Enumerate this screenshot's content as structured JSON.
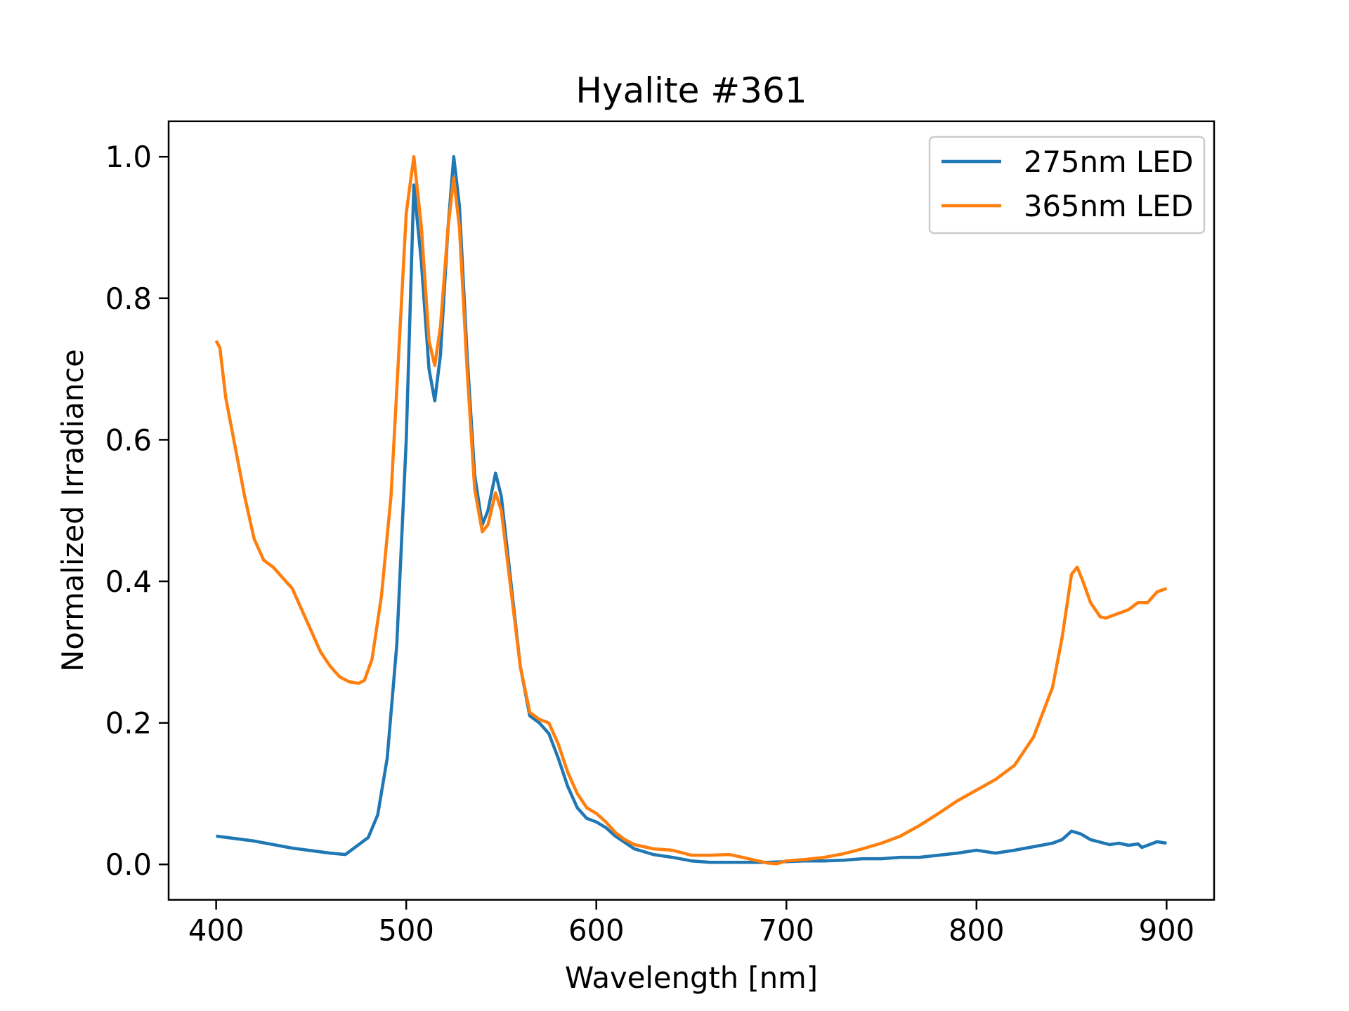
{
  "chart_data": {
    "type": "line",
    "title": "Hyalite #361",
    "xlabel": "Wavelength [nm]",
    "ylabel": "Normalized Irradiance",
    "xlim": [
      375,
      925
    ],
    "ylim": [
      -0.05,
      1.05
    ],
    "xticks": [
      400,
      500,
      600,
      700,
      800,
      900
    ],
    "xtick_labels": [
      "400",
      "500",
      "600",
      "700",
      "800",
      "900"
    ],
    "yticks": [
      0.0,
      0.2,
      0.4,
      0.6,
      0.8,
      1.0
    ],
    "ytick_labels": [
      "0.0",
      "0.2",
      "0.4",
      "0.6",
      "0.8",
      "1.0"
    ],
    "grid": false,
    "legend_position": "top-right",
    "series": [
      {
        "name": "275nm LED",
        "color": "#1f77b4",
        "x": [
          400,
          420,
          440,
          460,
          468,
          480,
          485,
          490,
          495,
          500,
          504,
          508,
          512,
          515,
          518,
          522,
          525,
          528,
          532,
          536,
          540,
          543,
          547,
          550,
          555,
          560,
          565,
          570,
          575,
          580,
          585,
          590,
          595,
          600,
          605,
          610,
          620,
          630,
          640,
          650,
          660,
          670,
          680,
          690,
          700,
          710,
          720,
          730,
          740,
          750,
          760,
          770,
          780,
          790,
          800,
          810,
          820,
          830,
          840,
          845,
          850,
          855,
          860,
          870,
          875,
          880,
          885,
          887,
          890,
          895,
          900
        ],
        "y": [
          0.04,
          0.033,
          0.023,
          0.016,
          0.014,
          0.038,
          0.07,
          0.15,
          0.31,
          0.6,
          0.96,
          0.85,
          0.7,
          0.655,
          0.72,
          0.9,
          1.0,
          0.93,
          0.72,
          0.55,
          0.48,
          0.5,
          0.553,
          0.52,
          0.4,
          0.28,
          0.21,
          0.2,
          0.185,
          0.15,
          0.11,
          0.08,
          0.065,
          0.06,
          0.052,
          0.04,
          0.022,
          0.014,
          0.01,
          0.005,
          0.003,
          0.003,
          0.003,
          0.003,
          0.004,
          0.005,
          0.005,
          0.006,
          0.008,
          0.008,
          0.01,
          0.01,
          0.013,
          0.016,
          0.02,
          0.016,
          0.02,
          0.025,
          0.03,
          0.035,
          0.047,
          0.043,
          0.035,
          0.028,
          0.03,
          0.027,
          0.029,
          0.024,
          0.027,
          0.032,
          0.03
        ]
      },
      {
        "name": "365nm LED",
        "color": "#ff7f0e",
        "x": [
          400,
          402,
          405,
          410,
          415,
          420,
          425,
          430,
          435,
          440,
          445,
          450,
          455,
          460,
          465,
          470,
          475,
          478,
          482,
          487,
          492,
          496,
          500,
          504,
          508,
          512,
          515,
          518,
          522,
          525,
          528,
          532,
          536,
          540,
          543,
          547,
          550,
          555,
          560,
          565,
          570,
          575,
          580,
          585,
          590,
          595,
          600,
          605,
          610,
          615,
          620,
          630,
          640,
          650,
          660,
          670,
          680,
          690,
          695,
          700,
          710,
          720,
          730,
          740,
          750,
          760,
          770,
          780,
          790,
          800,
          810,
          820,
          830,
          840,
          845,
          850,
          853,
          856,
          860,
          865,
          868,
          875,
          880,
          885,
          890,
          895,
          900
        ],
        "y": [
          0.74,
          0.73,
          0.66,
          0.59,
          0.52,
          0.46,
          0.43,
          0.42,
          0.405,
          0.39,
          0.36,
          0.33,
          0.3,
          0.28,
          0.265,
          0.258,
          0.256,
          0.26,
          0.29,
          0.38,
          0.52,
          0.72,
          0.92,
          1.0,
          0.9,
          0.74,
          0.705,
          0.76,
          0.9,
          0.97,
          0.9,
          0.7,
          0.53,
          0.47,
          0.48,
          0.525,
          0.5,
          0.39,
          0.28,
          0.215,
          0.205,
          0.2,
          0.17,
          0.13,
          0.1,
          0.08,
          0.072,
          0.06,
          0.045,
          0.035,
          0.028,
          0.022,
          0.02,
          0.013,
          0.013,
          0.014,
          0.008,
          0.002,
          0.001,
          0.005,
          0.007,
          0.01,
          0.015,
          0.022,
          0.03,
          0.04,
          0.055,
          0.072,
          0.09,
          0.105,
          0.12,
          0.14,
          0.18,
          0.25,
          0.32,
          0.41,
          0.42,
          0.4,
          0.37,
          0.35,
          0.348,
          0.355,
          0.36,
          0.37,
          0.37,
          0.385,
          0.39
        ]
      }
    ]
  }
}
